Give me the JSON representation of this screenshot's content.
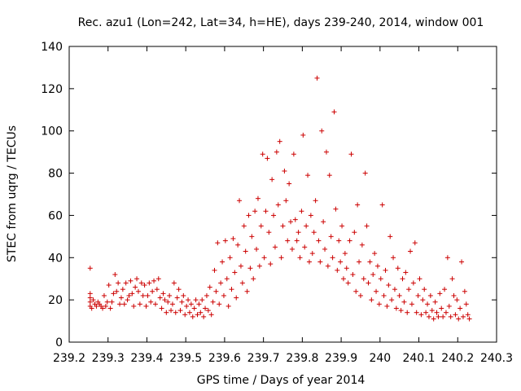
{
  "chart_data": {
    "type": "scatter",
    "title": "Rec. azu1 (Lon=242, Lat=34, h=HE), days 239-240, 2014, window 001",
    "xlabel": "GPS time / Days of year 2014",
    "ylabel": "STEC from uqrg / TECUs",
    "xlim": [
      239.2,
      240.3
    ],
    "ylim": [
      0,
      140
    ],
    "xticks": [
      "239.2",
      "239.3",
      "239.4",
      "239.5",
      "239.6",
      "239.7",
      "239.8",
      "239.9",
      "240",
      "240.1",
      "240.2",
      "240.3"
    ],
    "yticks": [
      "0",
      "20",
      "40",
      "60",
      "80",
      "100",
      "120",
      "140"
    ],
    "grid": false,
    "legend": "none",
    "marker": "plus",
    "color": "#cc0000",
    "series": [
      {
        "points": [
          [
            239.254,
            35
          ],
          [
            239.254,
            23
          ],
          [
            239.254,
            21
          ],
          [
            239.254,
            19
          ],
          [
            239.254,
            17
          ],
          [
            239.258,
            16
          ],
          [
            239.262,
            20
          ],
          [
            239.266,
            18
          ],
          [
            239.27,
            17
          ],
          [
            239.274,
            19
          ],
          [
            239.278,
            18
          ],
          [
            239.282,
            17
          ],
          [
            239.286,
            16
          ],
          [
            239.29,
            22
          ],
          [
            239.294,
            17
          ],
          [
            239.298,
            19
          ],
          [
            239.302,
            27
          ],
          [
            239.306,
            16
          ],
          [
            239.31,
            19
          ],
          [
            239.314,
            23
          ],
          [
            239.318,
            32
          ],
          [
            239.322,
            24
          ],
          [
            239.326,
            28
          ],
          [
            239.33,
            18
          ],
          [
            239.334,
            21
          ],
          [
            239.338,
            25
          ],
          [
            239.342,
            18
          ],
          [
            239.346,
            28
          ],
          [
            239.35,
            20
          ],
          [
            239.354,
            22
          ],
          [
            239.358,
            29
          ],
          [
            239.362,
            23
          ],
          [
            239.366,
            17
          ],
          [
            239.37,
            26
          ],
          [
            239.374,
            30
          ],
          [
            239.378,
            24
          ],
          [
            239.382,
            18
          ],
          [
            239.386,
            28
          ],
          [
            239.39,
            22
          ],
          [
            239.394,
            27
          ],
          [
            239.398,
            17
          ],
          [
            239.402,
            22
          ],
          [
            239.406,
            28
          ],
          [
            239.41,
            19
          ],
          [
            239.414,
            24
          ],
          [
            239.418,
            29
          ],
          [
            239.422,
            18
          ],
          [
            239.426,
            25
          ],
          [
            239.43,
            30
          ],
          [
            239.434,
            21
          ],
          [
            239.438,
            16
          ],
          [
            239.442,
            23
          ],
          [
            239.446,
            20
          ],
          [
            239.45,
            14
          ],
          [
            239.454,
            19
          ],
          [
            239.458,
            22
          ],
          [
            239.462,
            15
          ],
          [
            239.466,
            18
          ],
          [
            239.47,
            28
          ],
          [
            239.474,
            14
          ],
          [
            239.478,
            21
          ],
          [
            239.482,
            25
          ],
          [
            239.486,
            15
          ],
          [
            239.49,
            19
          ],
          [
            239.494,
            22
          ],
          [
            239.498,
            13
          ],
          [
            239.502,
            17
          ],
          [
            239.506,
            20
          ],
          [
            239.51,
            14
          ],
          [
            239.514,
            18
          ],
          [
            239.518,
            12
          ],
          [
            239.522,
            16
          ],
          [
            239.526,
            20
          ],
          [
            239.53,
            13
          ],
          [
            239.534,
            18
          ],
          [
            239.538,
            14
          ],
          [
            239.542,
            20
          ],
          [
            239.546,
            12
          ],
          [
            239.55,
            16
          ],
          [
            239.554,
            22
          ],
          [
            239.558,
            15
          ],
          [
            239.562,
            26
          ],
          [
            239.566,
            13
          ],
          [
            239.57,
            19
          ],
          [
            239.574,
            34
          ],
          [
            239.578,
            24
          ],
          [
            239.582,
            47
          ],
          [
            239.586,
            18
          ],
          [
            239.59,
            28
          ],
          [
            239.594,
            38
          ],
          [
            239.598,
            22
          ],
          [
            239.602,
            48
          ],
          [
            239.606,
            30
          ],
          [
            239.61,
            17
          ],
          [
            239.614,
            40
          ],
          [
            239.618,
            25
          ],
          [
            239.622,
            49
          ],
          [
            239.626,
            33
          ],
          [
            239.63,
            21
          ],
          [
            239.634,
            46
          ],
          [
            239.638,
            67
          ],
          [
            239.642,
            36
          ],
          [
            239.646,
            28
          ],
          [
            239.65,
            55
          ],
          [
            239.654,
            43
          ],
          [
            239.658,
            24
          ],
          [
            239.662,
            60
          ],
          [
            239.666,
            35
          ],
          [
            239.67,
            50
          ],
          [
            239.674,
            30
          ],
          [
            239.678,
            62
          ],
          [
            239.682,
            44
          ],
          [
            239.686,
            68
          ],
          [
            239.69,
            36
          ],
          [
            239.694,
            55
          ],
          [
            239.698,
            89
          ],
          [
            239.702,
            40
          ],
          [
            239.706,
            62
          ],
          [
            239.71,
            87
          ],
          [
            239.714,
            52
          ],
          [
            239.718,
            37
          ],
          [
            239.722,
            77
          ],
          [
            239.726,
            60
          ],
          [
            239.73,
            45
          ],
          [
            239.734,
            90
          ],
          [
            239.738,
            65
          ],
          [
            239.742,
            95
          ],
          [
            239.746,
            40
          ],
          [
            239.75,
            55
          ],
          [
            239.754,
            81
          ],
          [
            239.758,
            67
          ],
          [
            239.762,
            48
          ],
          [
            239.766,
            75
          ],
          [
            239.77,
            57
          ],
          [
            239.774,
            44
          ],
          [
            239.778,
            89
          ],
          [
            239.782,
            58
          ],
          [
            239.786,
            48
          ],
          [
            239.79,
            52
          ],
          [
            239.794,
            40
          ],
          [
            239.798,
            62
          ],
          [
            239.802,
            98
          ],
          [
            239.806,
            45
          ],
          [
            239.81,
            55
          ],
          [
            239.814,
            79
          ],
          [
            239.818,
            38
          ],
          [
            239.822,
            60
          ],
          [
            239.826,
            42
          ],
          [
            239.83,
            52
          ],
          [
            239.834,
            67
          ],
          [
            239.838,
            125
          ],
          [
            239.842,
            48
          ],
          [
            239.846,
            38
          ],
          [
            239.85,
            100
          ],
          [
            239.854,
            57
          ],
          [
            239.858,
            44
          ],
          [
            239.862,
            90
          ],
          [
            239.866,
            36
          ],
          [
            239.87,
            79
          ],
          [
            239.874,
            50
          ],
          [
            239.878,
            40
          ],
          [
            239.882,
            109
          ],
          [
            239.886,
            63
          ],
          [
            239.89,
            34
          ],
          [
            239.894,
            48
          ],
          [
            239.898,
            38
          ],
          [
            239.902,
            55
          ],
          [
            239.906,
            30
          ],
          [
            239.91,
            42
          ],
          [
            239.914,
            35
          ],
          [
            239.918,
            28
          ],
          [
            239.922,
            48
          ],
          [
            239.926,
            89
          ],
          [
            239.93,
            32
          ],
          [
            239.934,
            52
          ],
          [
            239.938,
            24
          ],
          [
            239.942,
            65
          ],
          [
            239.946,
            38
          ],
          [
            239.95,
            22
          ],
          [
            239.954,
            46
          ],
          [
            239.958,
            30
          ],
          [
            239.962,
            80
          ],
          [
            239.966,
            55
          ],
          [
            239.97,
            28
          ],
          [
            239.974,
            38
          ],
          [
            239.978,
            20
          ],
          [
            239.982,
            32
          ],
          [
            239.986,
            42
          ],
          [
            239.99,
            24
          ],
          [
            239.994,
            36
          ],
          [
            239.998,
            18
          ],
          [
            240.002,
            30
          ],
          [
            240.006,
            65
          ],
          [
            240.01,
            22
          ],
          [
            240.014,
            34
          ],
          [
            240.018,
            17
          ],
          [
            240.022,
            27
          ],
          [
            240.026,
            50
          ],
          [
            240.03,
            20
          ],
          [
            240.034,
            40
          ],
          [
            240.038,
            25
          ],
          [
            240.042,
            16
          ],
          [
            240.046,
            35
          ],
          [
            240.05,
            22
          ],
          [
            240.054,
            15
          ],
          [
            240.058,
            30
          ],
          [
            240.062,
            19
          ],
          [
            240.066,
            33
          ],
          [
            240.07,
            14
          ],
          [
            240.074,
            25
          ],
          [
            240.078,
            43
          ],
          [
            240.082,
            18
          ],
          [
            240.086,
            28
          ],
          [
            240.09,
            47
          ],
          [
            240.094,
            14
          ],
          [
            240.098,
            22
          ],
          [
            240.102,
            30
          ],
          [
            240.106,
            13
          ],
          [
            240.11,
            20
          ],
          [
            240.114,
            25
          ],
          [
            240.118,
            14
          ],
          [
            240.122,
            18
          ],
          [
            240.126,
            12
          ],
          [
            240.13,
            22
          ],
          [
            240.134,
            15
          ],
          [
            240.138,
            11
          ],
          [
            240.142,
            19
          ],
          [
            240.146,
            14
          ],
          [
            240.15,
            12
          ],
          [
            240.154,
            23
          ],
          [
            240.158,
            16
          ],
          [
            240.162,
            12
          ],
          [
            240.166,
            25
          ],
          [
            240.17,
            14
          ],
          [
            240.174,
            40
          ],
          [
            240.178,
            17
          ],
          [
            240.182,
            12
          ],
          [
            240.186,
            30
          ],
          [
            240.19,
            22
          ],
          [
            240.194,
            13
          ],
          [
            240.198,
            20
          ],
          [
            240.202,
            11
          ],
          [
            240.206,
            16
          ],
          [
            240.21,
            38
          ],
          [
            240.214,
            12
          ],
          [
            240.218,
            24
          ],
          [
            240.222,
            18
          ],
          [
            240.226,
            13
          ],
          [
            240.23,
            11
          ]
        ]
      }
    ]
  }
}
